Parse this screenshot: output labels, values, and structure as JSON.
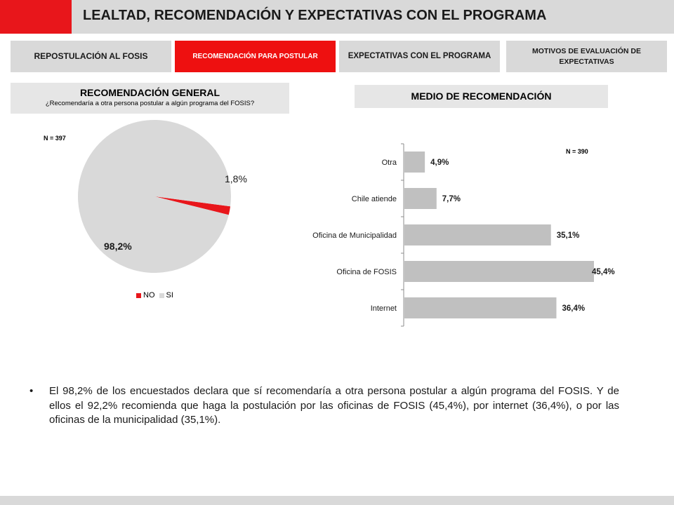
{
  "header": {
    "title": "LEALTAD, RECOMENDACIÓN Y EXPECTATIVAS CON EL PROGRAMA"
  },
  "tabs": [
    {
      "label": "REPOSTULACIÓN AL FOSIS",
      "active": false
    },
    {
      "label": "RECOMENDACIÓN PARA POSTULAR",
      "active": true
    },
    {
      "label": "EXPECTATIVAS CON EL PROGRAMA",
      "active": false
    },
    {
      "label": "MOTIVOS DE EVALUACIÓN DE EXPECTATIVAS",
      "active": false
    }
  ],
  "left_section": {
    "title": "RECOMENDACIÓN GENERAL",
    "subtitle": "¿Recomendaría a otra persona postular a algún programa del FOSIS?",
    "n_label": "N = 397"
  },
  "right_section": {
    "title": "MEDIO DE RECOMENDACIÓN",
    "n_label": "N = 390"
  },
  "chart_data": [
    {
      "type": "pie",
      "labels": [
        "NO",
        "SI"
      ],
      "values": [
        1.8,
        98.2
      ],
      "value_labels": [
        "1,8%",
        "98,2%"
      ],
      "colors": [
        "#e8161b",
        "#d9d9d9"
      ],
      "legend_position": "bottom"
    },
    {
      "type": "bar",
      "orientation": "horizontal",
      "categories": [
        "Otra",
        "Chile atiende",
        "Oficina de Municipalidad",
        "Oficina de FOSIS",
        "Internet"
      ],
      "values": [
        4.9,
        7.7,
        35.1,
        45.4,
        36.4
      ],
      "value_labels": [
        "4,9%",
        "7,7%",
        "35,1%",
        "45,4%",
        "36,4%"
      ],
      "color": "#c0c0c0",
      "xlim": [
        0,
        45.4
      ]
    }
  ],
  "legend": [
    {
      "label": "NO",
      "color": "#e8161b"
    },
    {
      "label": "SI",
      "color": "#d9d9d9"
    }
  ],
  "bullet": {
    "symbol": "•",
    "text": "El 98,2% de los encuestados declara que sí recomendaría a otra persona postular a algún programa del FOSIS. Y de ellos el 92,2% recomienda que haga la postulación por las oficinas de FOSIS (45,4%), por internet (36,4%), o por las oficinas de la municipalidad (35,1%)."
  }
}
